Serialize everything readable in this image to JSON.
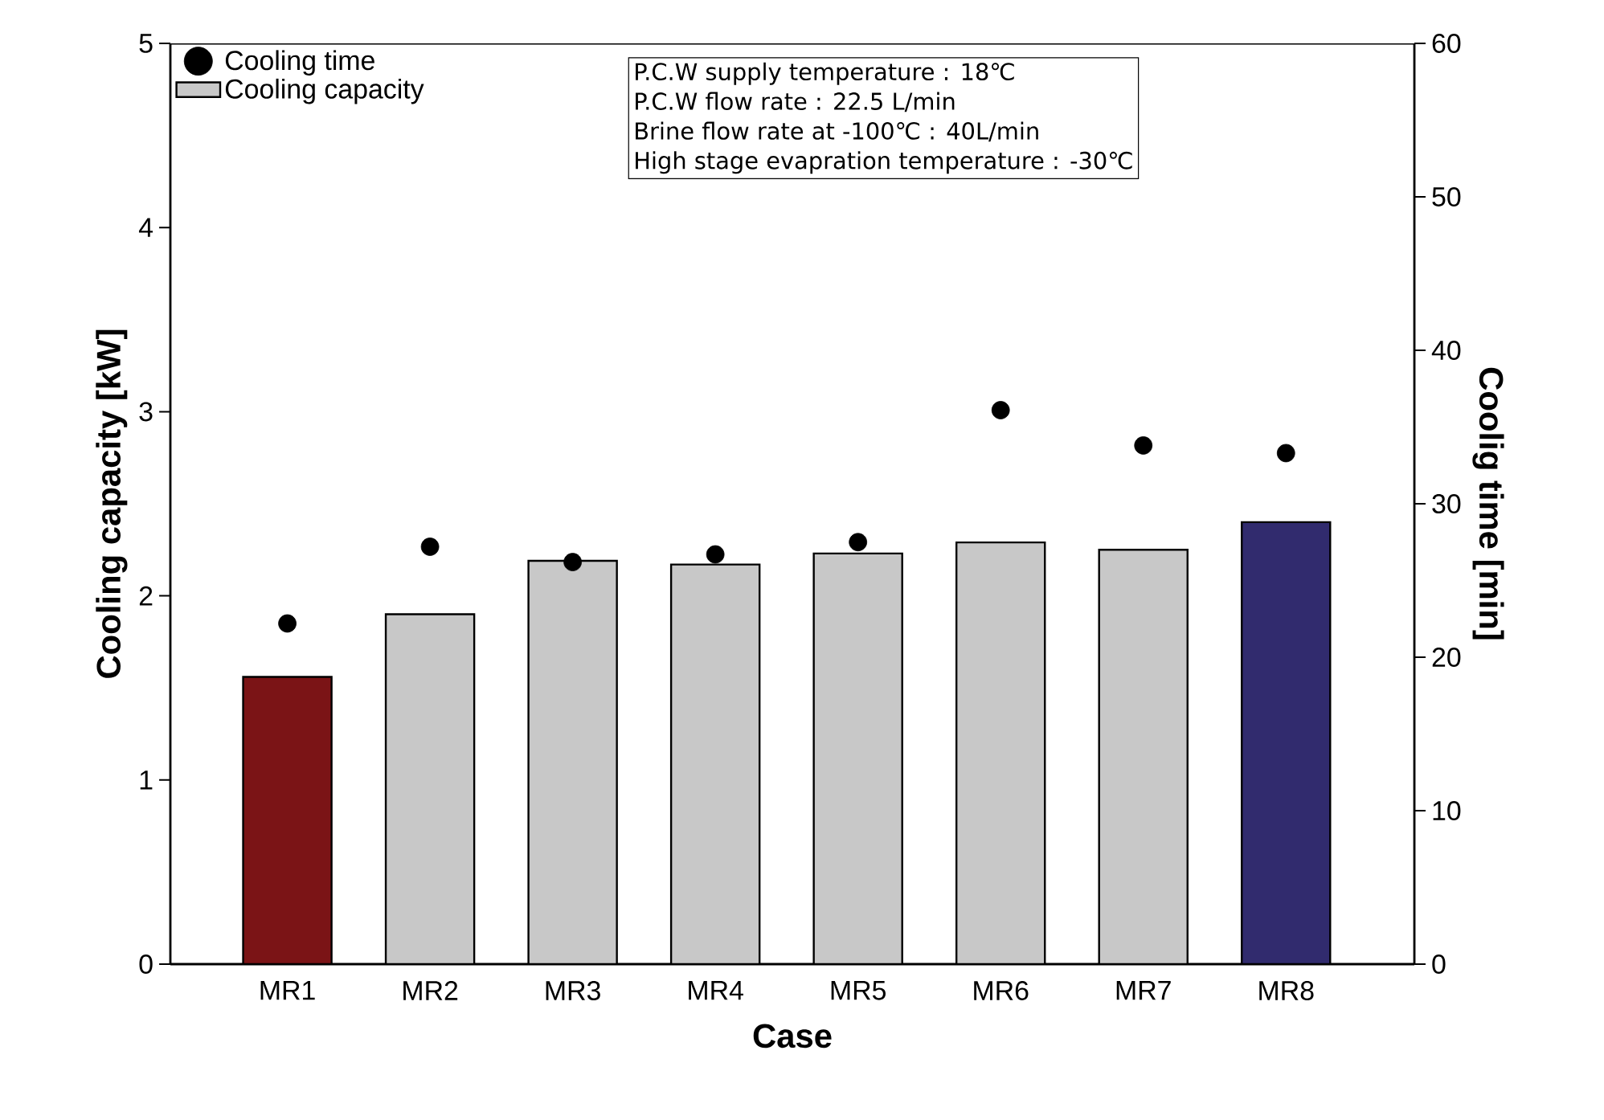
{
  "chart_data": {
    "type": "bar",
    "xlabel": "Case",
    "ylabel": "Cooling capacity [kW]",
    "y2label": "Coolig time [min]",
    "categories": [
      "MR1",
      "MR2",
      "MR3",
      "MR4",
      "MR5",
      "MR6",
      "MR7",
      "MR8"
    ],
    "series": [
      {
        "name": "Cooling time",
        "type": "scatter",
        "axis": "y2",
        "color": "#000000",
        "values": [
          22.2,
          27.2,
          26.2,
          26.7,
          27.5,
          36.1,
          33.8,
          33.3
        ]
      },
      {
        "name": "Cooling capacity",
        "color": "#c8c8c8",
        "colors": [
          "#7b1416",
          "#c8c8c8",
          "#c8c8c8",
          "#c8c8c8",
          "#c8c8c8",
          "#c8c8c8",
          "#c8c8c8",
          "#312b6e"
        ],
        "values": [
          1.56,
          1.9,
          2.19,
          2.17,
          2.23,
          2.29,
          2.25,
          2.4
        ]
      }
    ],
    "legend": "top left",
    "ylim": [
      0,
      5
    ],
    "yticks": [
      0,
      1,
      2,
      3,
      4,
      5
    ],
    "y2lim": [
      0,
      60
    ],
    "y2ticks": [
      0,
      10,
      20,
      30,
      40,
      50,
      60
    ],
    "annotations": [
      "P.C.W supply temperature : 18℃",
      "P.C.W flow rate : 22.5 L/min",
      "Brine flow rate at -100℃ : 40L/min",
      "High stage evapration temperature : -30℃"
    ]
  }
}
